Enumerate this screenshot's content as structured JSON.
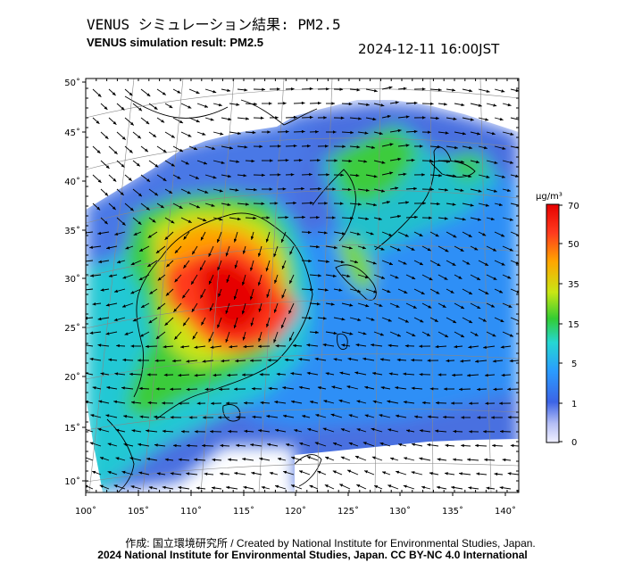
{
  "header": {
    "title_ja": "VENUS シミュレーション結果: PM2.5",
    "title_en": "VENUS simulation result: PM2.5",
    "timestamp": "2024-12-11 16:00JST"
  },
  "map": {
    "lat_labels": [
      "50˚",
      "45˚",
      "40˚",
      "35˚",
      "30˚",
      "25˚",
      "20˚",
      "15˚",
      "10˚"
    ],
    "lon_labels": [
      "100˚",
      "105˚",
      "110˚",
      "115˚",
      "120˚",
      "125˚",
      "130˚",
      "135˚",
      "140˚"
    ],
    "lat_range": [
      8.5,
      50.5
    ],
    "lon_range": [
      100,
      141
    ]
  },
  "colorbar": {
    "unit": "μg/m³",
    "labels": [
      "70",
      "50",
      "35",
      "15",
      "5",
      "1",
      "0"
    ],
    "colors": [
      "#f0f0ff",
      "#5a78e6",
      "#2a8cff",
      "#25d7d2",
      "#33cc33",
      "#c8e614",
      "#ffa500",
      "#ff3b1e",
      "#e60000"
    ]
  },
  "footer": {
    "credit_line": "作成: 国立環境研究所 / Created by National Institute for Environmental Studies, Japan.",
    "copyright_line": "2024 National Institute for Environmental Studies, Japan. CC BY-NC 4.0 International"
  }
}
